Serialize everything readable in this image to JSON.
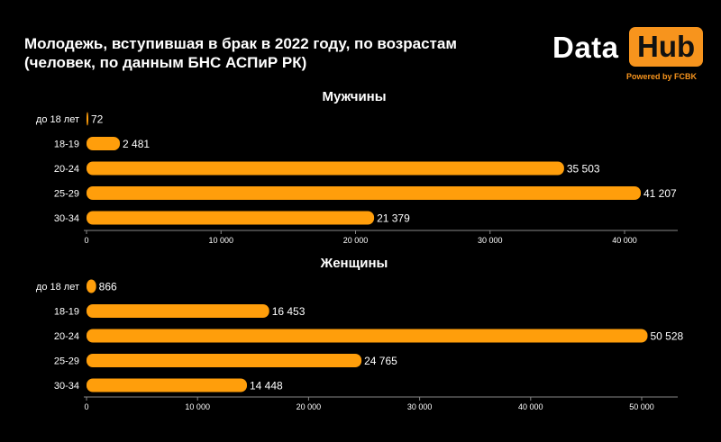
{
  "title_line1": "Молодежь, вступившая в брак в 2022 году, по возрастам",
  "title_line2": "(человек, по данным БНС АСПиР РК)",
  "logo": {
    "data": "Data",
    "hub": "Hub",
    "powered": "Powered by FCBK"
  },
  "colors": {
    "bar": "#ff9e0b",
    "background": "#000000",
    "axis": "#888888"
  },
  "chart_data": [
    {
      "type": "bar",
      "orientation": "horizontal",
      "title": "Мужчины",
      "categories": [
        "до 18 лет",
        "18-19",
        "20-24",
        "25-29",
        "30-34"
      ],
      "values": [
        72,
        2481,
        35503,
        41207,
        21379
      ],
      "value_labels": [
        "72",
        "2 481",
        "35 503",
        "41 207",
        "21 379"
      ],
      "xlim": [
        0,
        44000
      ],
      "ticks": [
        0,
        10000,
        20000,
        30000,
        40000
      ],
      "tick_labels": [
        "0",
        "10 000",
        "20 000",
        "30 000",
        "40 000"
      ]
    },
    {
      "type": "bar",
      "orientation": "horizontal",
      "title": "Женщины",
      "categories": [
        "до 18 лет",
        "18-19",
        "20-24",
        "25-29",
        "30-34"
      ],
      "values": [
        866,
        16453,
        50528,
        24765,
        14448
      ],
      "value_labels": [
        "866",
        "16 453",
        "50 528",
        "24 765",
        "14 448"
      ],
      "xlim": [
        0,
        51500
      ],
      "ticks": [
        0,
        10000,
        20000,
        30000,
        40000,
        50000
      ],
      "tick_labels": [
        "0",
        "10 000",
        "20 000",
        "30 000",
        "40 000",
        "50 000"
      ]
    }
  ]
}
